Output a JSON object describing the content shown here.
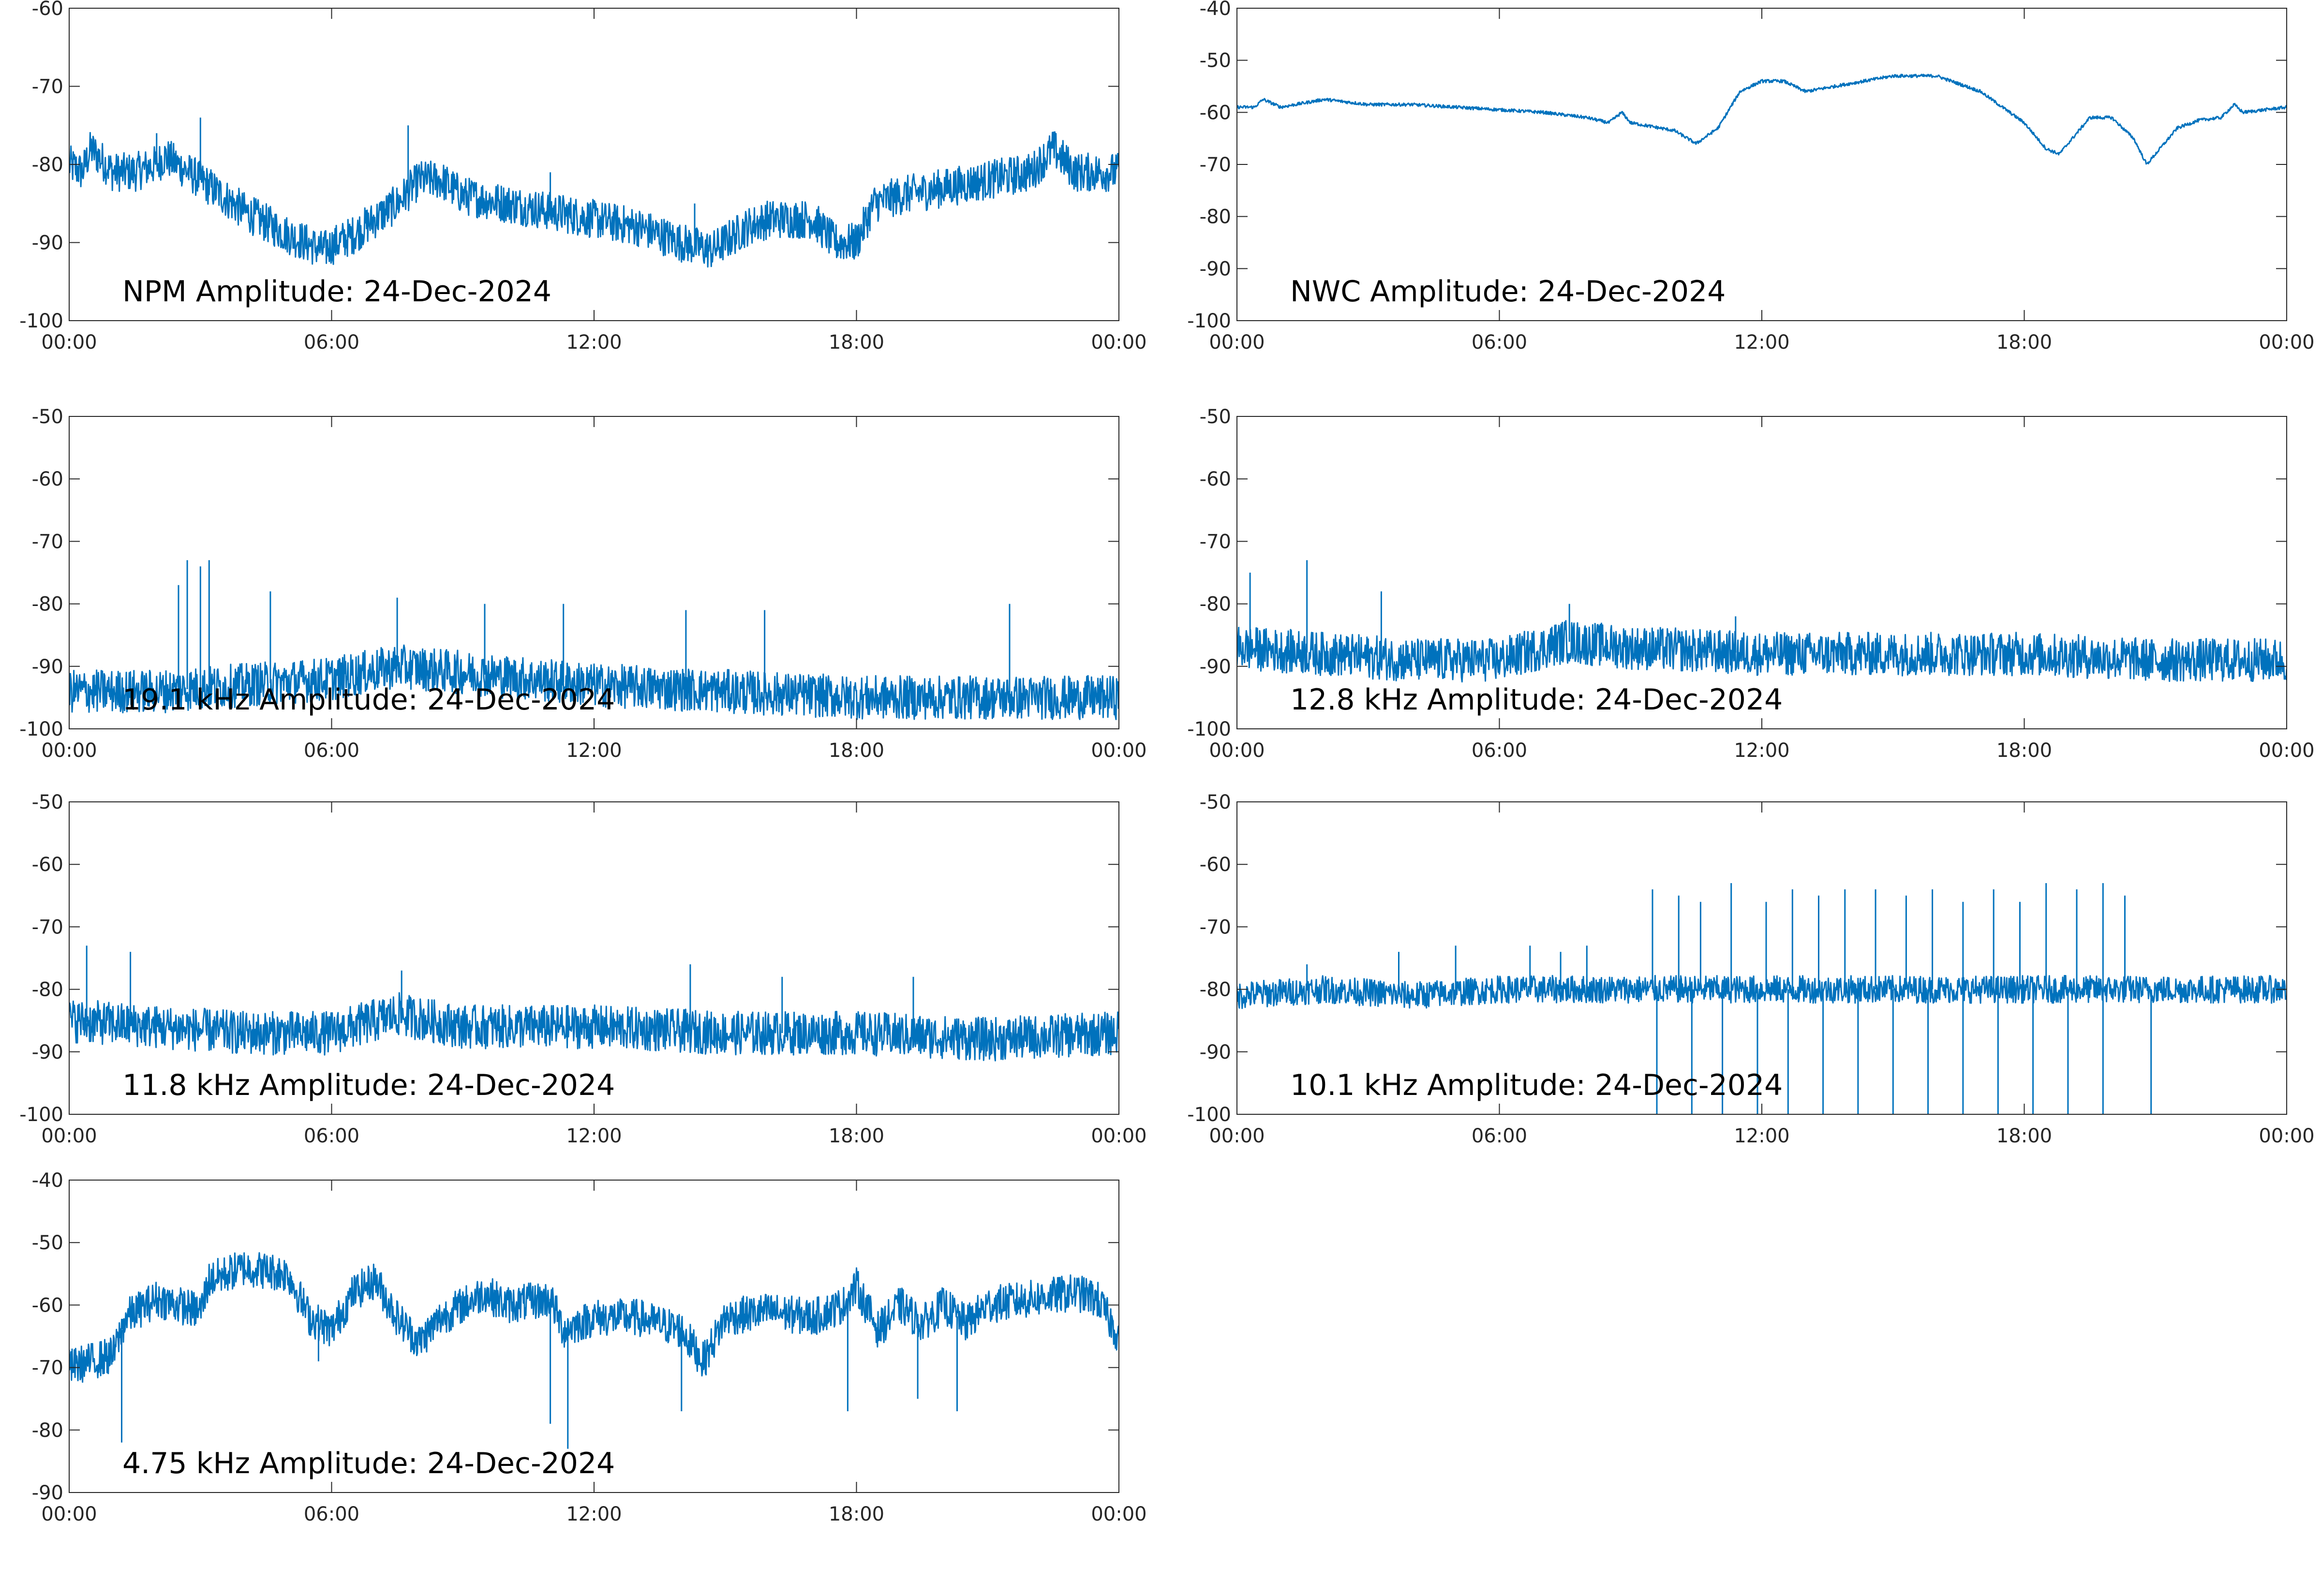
{
  "figure": {
    "background": "#ffffff",
    "line_color": "#0072bd",
    "axis_color": "#262626"
  },
  "chart_data": [
    {
      "type": "line",
      "title": "NPM Amplitude: 24-Dec-2024",
      "xlabel": "",
      "ylabel": "",
      "xlim": [
        0,
        24
      ],
      "ylim": [
        -100,
        -60
      ],
      "xticks": [
        0,
        6,
        12,
        18,
        24
      ],
      "xtick_labels": [
        "00:00",
        "06:00",
        "12:00",
        "18:00",
        "00:00"
      ],
      "yticks": [
        -100,
        -90,
        -80,
        -70,
        -60
      ],
      "ytick_labels": [
        "-100",
        "-90",
        "-80",
        "-70",
        "-60"
      ],
      "grid": false,
      "noise": 2.5,
      "spikes": [
        [
          2.0,
          -76
        ],
        [
          3.0,
          -74
        ],
        [
          7.75,
          -75
        ],
        [
          11.0,
          -81
        ],
        [
          14.3,
          -85
        ]
      ],
      "series": [
        {
          "x": [
            0,
            0.3,
            0.5,
            1,
            1.5,
            2,
            2.2,
            3,
            4,
            5,
            5.8,
            6.5,
            7,
            7.5,
            8,
            8.5,
            9,
            10,
            11,
            12,
            13,
            14,
            14.7,
            15.5,
            16,
            17,
            17.5,
            18,
            18.4,
            19,
            20,
            21,
            22,
            22.5,
            23,
            24
          ],
          "y": [
            -80,
            -81,
            -78,
            -81,
            -81,
            -80,
            -79,
            -82,
            -86,
            -89,
            -91,
            -89,
            -87,
            -85,
            -82,
            -82,
            -84,
            -85,
            -86,
            -87,
            -88,
            -90,
            -91,
            -88,
            -87,
            -87,
            -90,
            -90,
            -85,
            -84,
            -83,
            -82,
            -81,
            -78,
            -81,
            -81
          ]
        }
      ]
    },
    {
      "type": "line",
      "title": "NWC Amplitude: 24-Dec-2024",
      "xlabel": "",
      "ylabel": "",
      "xlim": [
        0,
        24
      ],
      "ylim": [
        -100,
        -40
      ],
      "xticks": [
        0,
        6,
        12,
        18,
        24
      ],
      "xtick_labels": [
        "00:00",
        "06:00",
        "12:00",
        "18:00",
        "00:00"
      ],
      "yticks": [
        -100,
        -90,
        -80,
        -70,
        -60,
        -50,
        -40
      ],
      "ytick_labels": [
        "-100",
        "-90",
        "-80",
        "-70",
        "-60",
        "-50",
        "-40"
      ],
      "grid": false,
      "noise": 0.3,
      "spikes": [],
      "series": [
        {
          "x": [
            0,
            0.4,
            0.6,
            1,
            2,
            3,
            4,
            5,
            6,
            7,
            8,
            8.5,
            8.8,
            9,
            10,
            10.5,
            11,
            11.5,
            12,
            12.5,
            13,
            14,
            15,
            16,
            17,
            17.5,
            18,
            18.5,
            18.8,
            19.5,
            20,
            20.5,
            20.8,
            21.5,
            22,
            22.5,
            22.8,
            23,
            24
          ],
          "y": [
            -59,
            -59,
            -57.5,
            -59,
            -57.5,
            -58.5,
            -58.5,
            -59,
            -59.5,
            -60,
            -61,
            -62,
            -60,
            -62,
            -63.5,
            -66,
            -63,
            -56,
            -54,
            -54,
            -56,
            -54.5,
            -53,
            -53,
            -56,
            -59,
            -62,
            -67,
            -68,
            -61,
            -61,
            -65,
            -70,
            -63,
            -61.5,
            -61,
            -58.5,
            -60,
            -59
          ]
        }
      ]
    },
    {
      "type": "line",
      "title": "19.1 kHz Amplitude: 24-Dec-2024",
      "xlabel": "",
      "ylabel": "",
      "xlim": [
        0,
        24
      ],
      "ylim": [
        -100,
        -50
      ],
      "xticks": [
        0,
        6,
        12,
        18,
        24
      ],
      "xtick_labels": [
        "00:00",
        "06:00",
        "12:00",
        "18:00",
        "00:00"
      ],
      "yticks": [
        -100,
        -90,
        -80,
        -70,
        -60,
        -50
      ],
      "ytick_labels": [
        "-100",
        "-90",
        "-80",
        "-70",
        "-60",
        "-50"
      ],
      "grid": false,
      "noise": 3.5,
      "spikes": [
        [
          2.5,
          -77
        ],
        [
          2.7,
          -73
        ],
        [
          3.0,
          -74
        ],
        [
          3.2,
          -73
        ],
        [
          4.6,
          -78
        ],
        [
          7.5,
          -79
        ],
        [
          9.5,
          -80
        ],
        [
          11.3,
          -80
        ],
        [
          14.1,
          -81
        ],
        [
          15.9,
          -81
        ],
        [
          21.5,
          -80
        ]
      ],
      "series": [
        {
          "x": [
            0,
            2,
            4,
            6,
            7.5,
            9,
            12,
            15,
            18,
            21,
            24
          ],
          "y": [
            -94,
            -94,
            -93,
            -92,
            -90,
            -91,
            -93,
            -94,
            -95,
            -95,
            -95
          ]
        }
      ]
    },
    {
      "type": "line",
      "title": "12.8 kHz Amplitude: 24-Dec-2024",
      "xlabel": "",
      "ylabel": "",
      "xlim": [
        0,
        24
      ],
      "ylim": [
        -100,
        -50
      ],
      "xticks": [
        0,
        6,
        12,
        18,
        24
      ],
      "xtick_labels": [
        "00:00",
        "06:00",
        "12:00",
        "18:00",
        "00:00"
      ],
      "yticks": [
        -100,
        -90,
        -80,
        -70,
        -60,
        -50
      ],
      "ytick_labels": [
        "-100",
        "-90",
        "-80",
        "-70",
        "-60",
        "-50"
      ],
      "grid": false,
      "noise": 3.5,
      "spikes": [
        [
          0.3,
          -75
        ],
        [
          1.6,
          -73
        ],
        [
          3.3,
          -78
        ],
        [
          7.6,
          -80
        ],
        [
          11.4,
          -82
        ]
      ],
      "series": [
        {
          "x": [
            0,
            2,
            4,
            6,
            7.5,
            9,
            12,
            15,
            18,
            21,
            24
          ],
          "y": [
            -87,
            -88,
            -89,
            -89,
            -86,
            -87,
            -88,
            -88,
            -88,
            -89,
            -89
          ]
        }
      ]
    },
    {
      "type": "line",
      "title": "11.8 kHz Amplitude: 24-Dec-2024",
      "xlabel": "",
      "ylabel": "",
      "xlim": [
        0,
        24
      ],
      "ylim": [
        -100,
        -50
      ],
      "xticks": [
        0,
        6,
        12,
        18,
        24
      ],
      "xtick_labels": [
        "00:00",
        "06:00",
        "12:00",
        "18:00",
        "00:00"
      ],
      "yticks": [
        -100,
        -90,
        -80,
        -70,
        -60,
        -50
      ],
      "ytick_labels": [
        "-100",
        "-90",
        "-80",
        "-70",
        "-60",
        "-50"
      ],
      "grid": false,
      "noise": 3.5,
      "spikes": [
        [
          0.4,
          -73
        ],
        [
          1.4,
          -74
        ],
        [
          7.6,
          -77
        ],
        [
          14.2,
          -76
        ],
        [
          16.3,
          -78
        ],
        [
          19.3,
          -78
        ]
      ],
      "series": [
        {
          "x": [
            0,
            2,
            4,
            6,
            7.5,
            9,
            12,
            15,
            18,
            21,
            24
          ],
          "y": [
            -85,
            -86,
            -87,
            -87,
            -84,
            -86,
            -86,
            -87,
            -87,
            -88,
            -87
          ]
        }
      ]
    },
    {
      "type": "line",
      "title": "10.1 kHz Amplitude: 24-Dec-2024",
      "xlabel": "",
      "ylabel": "",
      "xlim": [
        0,
        24
      ],
      "ylim": [
        -100,
        -50
      ],
      "xticks": [
        0,
        6,
        12,
        18,
        24
      ],
      "xtick_labels": [
        "00:00",
        "06:00",
        "12:00",
        "18:00",
        "00:00"
      ],
      "yticks": [
        -100,
        -90,
        -80,
        -70,
        -60,
        -50
      ],
      "ytick_labels": [
        "-100",
        "-90",
        "-80",
        "-70",
        "-60",
        "-50"
      ],
      "grid": false,
      "noise": 2.2,
      "spikes": [
        [
          1.6,
          -76
        ],
        [
          3.7,
          -74
        ],
        [
          5.0,
          -73
        ],
        [
          6.7,
          -73
        ],
        [
          7.4,
          -74
        ],
        [
          8.0,
          -73
        ],
        [
          9.5,
          -64
        ],
        [
          10.1,
          -65
        ],
        [
          10.6,
          -66
        ],
        [
          11.3,
          -63
        ],
        [
          12.1,
          -66
        ],
        [
          12.7,
          -64
        ],
        [
          13.3,
          -65
        ],
        [
          13.9,
          -64
        ],
        [
          14.6,
          -64
        ],
        [
          15.3,
          -65
        ],
        [
          15.9,
          -64
        ],
        [
          16.6,
          -66
        ],
        [
          17.3,
          -64
        ],
        [
          17.9,
          -66
        ],
        [
          18.5,
          -63
        ],
        [
          19.2,
          -64
        ],
        [
          19.8,
          -63
        ],
        [
          20.3,
          -65
        ],
        [
          9.6,
          -100
        ],
        [
          10.4,
          -100
        ],
        [
          11.1,
          -100
        ],
        [
          11.9,
          -100
        ],
        [
          12.6,
          -100
        ],
        [
          13.4,
          -100
        ],
        [
          14.2,
          -100
        ],
        [
          15.0,
          -100
        ],
        [
          15.8,
          -100
        ],
        [
          16.6,
          -100
        ],
        [
          17.4,
          -100
        ],
        [
          18.2,
          -100
        ],
        [
          19.0,
          -100
        ],
        [
          19.8,
          -100
        ],
        [
          20.9,
          -100
        ]
      ],
      "series": [
        {
          "x": [
            0,
            2,
            4,
            6,
            8,
            9.2,
            12,
            16,
            20,
            22,
            24
          ],
          "y": [
            -81,
            -80,
            -81,
            -80,
            -80,
            -80,
            -80,
            -80,
            -80,
            -80,
            -80
          ]
        }
      ]
    },
    {
      "type": "line",
      "title": "4.75 kHz Amplitude: 24-Dec-2024",
      "xlabel": "",
      "ylabel": "",
      "xlim": [
        0,
        24
      ],
      "ylim": [
        -90,
        -40
      ],
      "xticks": [
        0,
        6,
        12,
        18,
        24
      ],
      "xtick_labels": [
        "00:00",
        "06:00",
        "12:00",
        "18:00",
        "00:00"
      ],
      "yticks": [
        -90,
        -80,
        -70,
        -60,
        -50,
        -40
      ],
      "ytick_labels": [
        "-90",
        "-80",
        "-70",
        "-60",
        "-50",
        "-40"
      ],
      "grid": false,
      "noise": 3,
      "spikes": [
        [
          1.2,
          -82
        ],
        [
          5.7,
          -69
        ],
        [
          11.0,
          -79
        ],
        [
          11.4,
          -83
        ],
        [
          14.0,
          -77
        ],
        [
          17.8,
          -77
        ],
        [
          19.4,
          -75
        ],
        [
          20.3,
          -77
        ]
      ],
      "series": [
        {
          "x": [
            0,
            1,
            1.3,
            2,
            3,
            3.2,
            4,
            5,
            5.5,
            6,
            6.5,
            7,
            7.5,
            8,
            8.5,
            9,
            9.5,
            10,
            11,
            11.3,
            12,
            13,
            14,
            14.5,
            15,
            16,
            17,
            17.7,
            18,
            18.5,
            19,
            19.5,
            20,
            20.5,
            21,
            22,
            23,
            23.5,
            24
          ],
          "y": [
            -70,
            -68,
            -62,
            -59,
            -61,
            -56,
            -54,
            -55,
            -62,
            -64,
            -58,
            -56,
            -62,
            -66,
            -62,
            -60,
            -58,
            -60,
            -59,
            -64,
            -62,
            -62,
            -64,
            -69,
            -62,
            -61,
            -62,
            -60,
            -57,
            -64,
            -60,
            -63,
            -60,
            -63,
            -60,
            -59,
            -58,
            -59,
            -65
          ]
        }
      ]
    }
  ]
}
